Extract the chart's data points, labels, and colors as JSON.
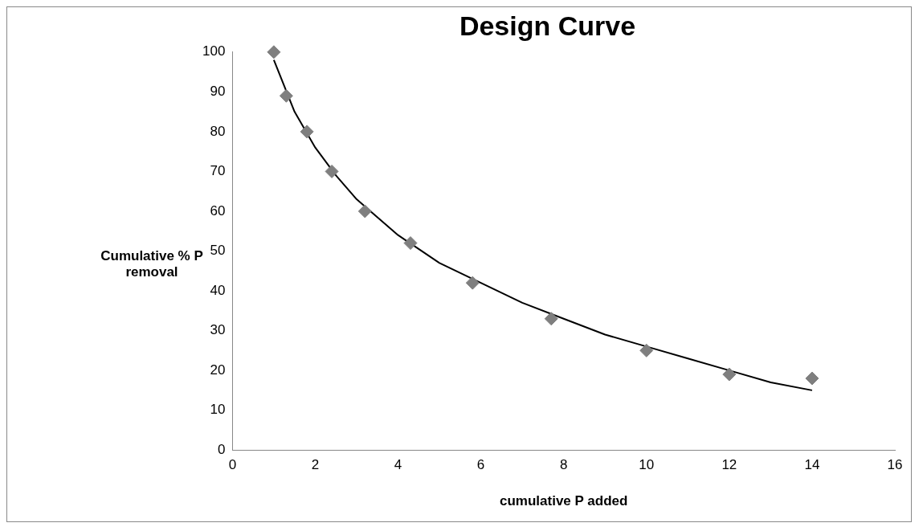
{
  "chart_data": {
    "type": "scatter",
    "title": "Design Curve",
    "xlabel": "cumulative P added",
    "ylabel": "Cumulative % P removal",
    "xlim": [
      0,
      16
    ],
    "xticks": [
      0,
      2,
      4,
      6,
      8,
      10,
      12,
      14,
      16
    ],
    "ylim": [
      0,
      100
    ],
    "yticks": [
      0,
      10,
      20,
      30,
      40,
      50,
      60,
      70,
      80,
      90,
      100
    ],
    "grid": false,
    "legend": false,
    "series": [
      {
        "color": "#7f7f7f",
        "marker": "diamond",
        "x": [
          1,
          1.3,
          1.8,
          2.4,
          3.2,
          4.3,
          5.8,
          7.7,
          10,
          12,
          14
        ],
        "values": [
          100,
          89,
          80,
          70,
          60,
          52,
          42,
          33,
          25,
          19,
          18
        ]
      },
      {
        "type": "line",
        "color": "#000000",
        "marker": "none",
        "line_style": "solid",
        "x": [
          1,
          1.5,
          2,
          2.5,
          3,
          4,
          5,
          6,
          7,
          8,
          9,
          10,
          11,
          12,
          13,
          14
        ],
        "values": [
          98,
          85,
          76,
          69,
          63,
          54,
          47,
          42,
          37,
          33,
          29,
          26,
          23,
          20,
          17,
          15
        ]
      }
    ]
  }
}
